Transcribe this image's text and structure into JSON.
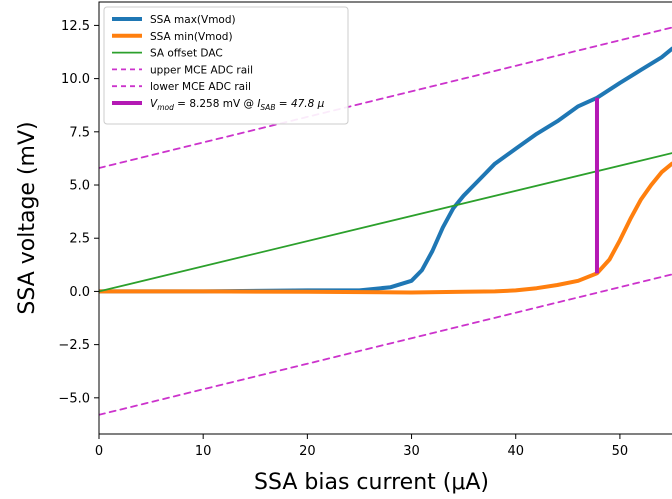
{
  "chart_data": {
    "type": "line",
    "title": "",
    "xlabel": "SSA bias current (μA)",
    "ylabel": "SSA voltage (mV)",
    "xlim": [
      0,
      55
    ],
    "ylim": [
      -6.7,
      13.6
    ],
    "xticks": [
      0,
      10,
      20,
      30,
      40,
      50
    ],
    "yticks": [
      -5.0,
      -2.5,
      0.0,
      2.5,
      5.0,
      7.5,
      10.0,
      12.5
    ],
    "ytick_labels": [
      "−5.0",
      "−2.5",
      "0.0",
      "2.5",
      "5.0",
      "7.5",
      "10.0",
      "12.5"
    ],
    "grid": false,
    "legend_position": "top-left",
    "series": [
      {
        "name": "SSA max(Vmod)",
        "color": "#1f77b4",
        "style": "solid-thick",
        "x": [
          0,
          10,
          20,
          25,
          28,
          30,
          31,
          32,
          33,
          34,
          35,
          36,
          37,
          38,
          40,
          42,
          44,
          46,
          47.8,
          50,
          52,
          54,
          55
        ],
        "y": [
          0.0,
          0.0,
          0.05,
          0.05,
          0.2,
          0.5,
          1.0,
          1.9,
          3.0,
          3.9,
          4.5,
          5.0,
          5.5,
          6.0,
          6.7,
          7.4,
          8.0,
          8.7,
          9.1,
          9.8,
          10.4,
          11.0,
          11.4
        ]
      },
      {
        "name": "SSA min(Vmod)",
        "color": "#ff7f0e",
        "style": "solid-thick",
        "x": [
          0,
          10,
          20,
          30,
          35,
          38,
          40,
          42,
          44,
          46,
          47.8,
          49,
          50,
          51,
          52,
          53,
          54,
          55
        ],
        "y": [
          0.0,
          0.0,
          -0.02,
          -0.05,
          -0.02,
          0.0,
          0.05,
          0.15,
          0.3,
          0.5,
          0.85,
          1.5,
          2.4,
          3.4,
          4.3,
          5.0,
          5.6,
          6.0
        ]
      },
      {
        "name": "SA offset DAC",
        "color": "#2ca02c",
        "style": "solid",
        "x": [
          0,
          55
        ],
        "y": [
          0.0,
          6.5
        ]
      },
      {
        "name": "upper MCE ADC rail",
        "color": "#cc33cc",
        "style": "dashed",
        "x": [
          0,
          55
        ],
        "y": [
          5.8,
          12.4
        ]
      },
      {
        "name": "lower MCE ADC rail",
        "color": "#cc33cc",
        "style": "dashed",
        "x": [
          0,
          55
        ],
        "y": [
          -5.8,
          0.8
        ]
      }
    ],
    "annotation": {
      "legend_label_main": "V",
      "legend_label_sub": "mod",
      "legend_label_mid": " = 8.258 mV @ ",
      "legend_label_i": "I",
      "legend_label_isub": "SAB",
      "legend_label_end": " = 47.8 μ",
      "color": "#b419b4",
      "x": 47.8,
      "y0": 0.85,
      "y1": 9.1
    }
  }
}
